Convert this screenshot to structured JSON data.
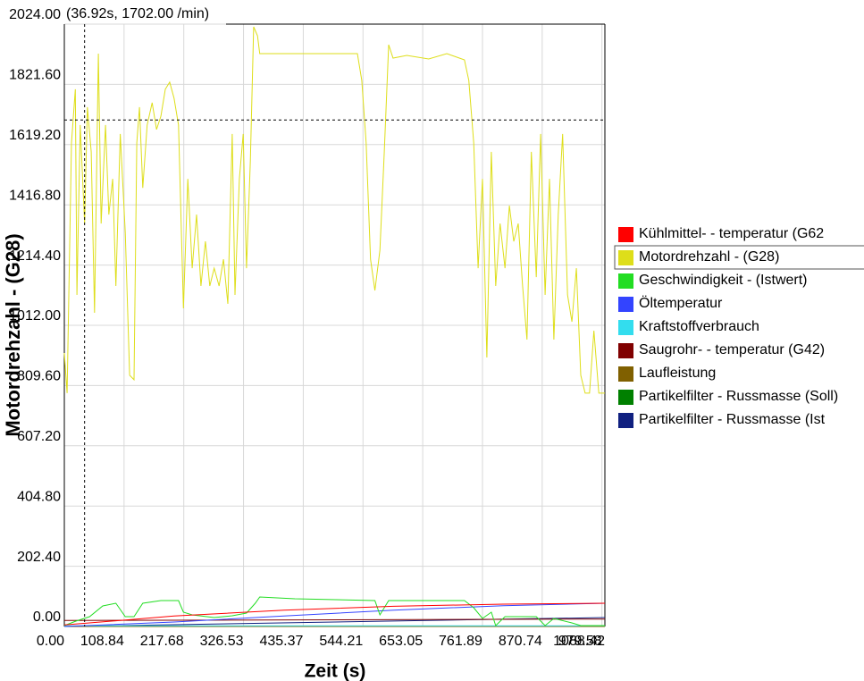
{
  "chart_data": {
    "type": "line",
    "x_label": "Zeit (s)",
    "y_label": "Motordrehzahl - (G28)",
    "cursor": {
      "label": "(36.92s, 1702.00 /min)",
      "x": 36.92,
      "y": 1702
    },
    "xlim": [
      0,
      985
    ],
    "xticks": [
      {
        "value": 0,
        "label": "0.00"
      },
      108.84,
      217.68,
      326.53,
      435.37,
      544.21,
      653.05,
      761.89,
      870.74,
      979.58,
      1088.42
    ],
    "ylim": [
      0,
      2024
    ],
    "yticks": [
      {
        "value": 0,
        "label": "0.00"
      },
      {
        "value": 202.4,
        "label": "202.40"
      },
      {
        "value": 404.8,
        "label": "404.80"
      },
      {
        "value": 607.2,
        "label": "607.20"
      },
      {
        "value": 809.6,
        "label": "809.60"
      },
      {
        "value": 1012,
        "label": "1012.00"
      },
      {
        "value": 1214.4,
        "label": "1214.40"
      },
      {
        "value": 1416.8,
        "label": "1416.80"
      },
      {
        "value": 1619.2,
        "label": "1619.20"
      },
      {
        "value": 1821.6,
        "label": "1821.60"
      },
      {
        "value": 2024,
        "label": "2024.00"
      }
    ],
    "grid": true,
    "highlighted_series": 1,
    "series": [
      {
        "name": "Kühlmittel- - temperatur (G62",
        "color": "#ff0000",
        "x": [
          0,
          200,
          400,
          600,
          800,
          985
        ],
        "values": [
          5,
          35,
          55,
          68,
          75,
          78
        ]
      },
      {
        "name": "Motordrehzahl - (G28)",
        "color": "#dede1a",
        "x": [
          0,
          5,
          13,
          20,
          23,
          29,
          37,
          42,
          49,
          55,
          62,
          67,
          75,
          81,
          88,
          94,
          102,
          111,
          119,
          127,
          132,
          137,
          143,
          151,
          160,
          168,
          176,
          184,
          192,
          200,
          208,
          217,
          225,
          233,
          241,
          249,
          257,
          265,
          273,
          282,
          290,
          298,
          306,
          311,
          319,
          326,
          332,
          339,
          345,
          352,
          356,
          420,
          534,
          542,
          550,
          558,
          566,
          575,
          583,
          591,
          599,
          624,
          664,
          697,
          729,
          737,
          746,
          754,
          762,
          770,
          778,
          786,
          794,
          803,
          811,
          819,
          827,
          835,
          843,
          851,
          860,
          868,
          876,
          884,
          892,
          900,
          908,
          917,
          925,
          933,
          941,
          949,
          957,
          965,
          974,
          985
        ],
        "values": [
          919,
          784,
          1625,
          1805,
          1114,
          1685,
          1354,
          1745,
          1595,
          1054,
          1925,
          1354,
          1685,
          1384,
          1504,
          1144,
          1655,
          1324,
          844,
          829,
          1625,
          1745,
          1474,
          1685,
          1760,
          1670,
          1715,
          1805,
          1829,
          1775,
          1685,
          1069,
          1504,
          1204,
          1384,
          1144,
          1294,
          1144,
          1204,
          1144,
          1234,
          1084,
          1655,
          1114,
          1504,
          1655,
          1204,
          1564,
          2015,
          1985,
          1925,
          1925,
          1925,
          1835,
          1625,
          1234,
          1129,
          1264,
          1595,
          1955,
          1910,
          1919,
          1907,
          1925,
          1904,
          1835,
          1625,
          1204,
          1504,
          904,
          1595,
          1144,
          1354,
          1204,
          1414,
          1294,
          1354,
          1144,
          964,
          1595,
          1174,
          1655,
          1114,
          1504,
          964,
          1384,
          1655,
          1114,
          1024,
          1204,
          844,
          784,
          784,
          994,
          784,
          784
        ]
      },
      {
        "name": "Geschwindigkeit - (Istwert)",
        "color": "#22dd22",
        "x": [
          0,
          21,
          46,
          70,
          94,
          111,
          127,
          143,
          176,
          208,
          217,
          233,
          273,
          306,
          332,
          348,
          356,
          420,
          566,
          575,
          591,
          729,
          746,
          762,
          778,
          786,
          803,
          860,
          876,
          892,
          925,
          941,
          985
        ],
        "values": [
          3,
          18,
          33,
          69,
          78,
          33,
          33,
          78,
          87,
          87,
          48,
          39,
          30,
          36,
          45,
          78,
          99,
          93,
          87,
          39,
          87,
          87,
          63,
          27,
          48,
          3,
          33,
          33,
          3,
          27,
          12,
          3,
          3
        ]
      },
      {
        "name": "Öltemperatur",
        "color": "#3344ff",
        "x": [
          0,
          200,
          400,
          600,
          800,
          985
        ],
        "values": [
          0,
          15,
          35,
          55,
          70,
          78
        ]
      },
      {
        "name": "Kraftstoffverbrauch",
        "color": "#33ddee",
        "x": [
          0,
          985
        ],
        "values": [
          2,
          2
        ]
      },
      {
        "name": "Saugrohr- - temperatur (G42)",
        "color": "#800000",
        "x": [
          0,
          985
        ],
        "values": [
          20,
          25
        ]
      },
      {
        "name": "Laufleistung",
        "color": "#806000",
        "x": [
          0,
          985
        ],
        "values": [
          0,
          0
        ]
      },
      {
        "name": "Partikelfilter - Russmasse (Soll)",
        "color": "#008000",
        "x": [
          0,
          985
        ],
        "values": [
          1,
          1
        ]
      },
      {
        "name": "Partikelfilter - Russmasse (Ist",
        "color": "#102080",
        "x": [
          0,
          985
        ],
        "values": [
          0,
          30
        ]
      }
    ]
  }
}
